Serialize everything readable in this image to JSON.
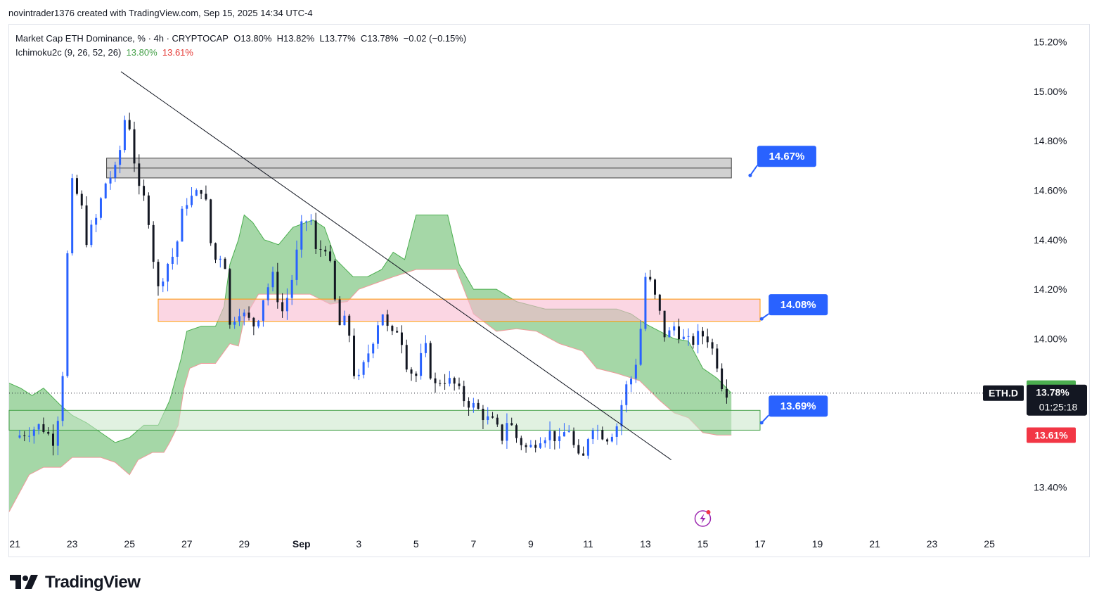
{
  "header": {
    "attribution": "novintrader1376 created with TradingView.com, Sep 15, 2025 14:34 UTC-4"
  },
  "legend": {
    "symbol_line": "Market Cap ETH Dominance, % · 4h · CRYPTOCAP",
    "o_label": "O",
    "o_value": "13.80%",
    "h_label": "H",
    "h_value": "13.82%",
    "l_label": "L",
    "l_value": "13.77%",
    "c_label": "C",
    "c_value": "13.78%",
    "change": "−0.02 (−0.15%)",
    "indicator": "Ichimoku2c (9, 26, 52, 26)",
    "ind_value1": "13.80%",
    "ind_value2": "13.61%"
  },
  "branding": {
    "logo_text": "TradingView",
    "logo_icon": "tradingview-logo-icon"
  },
  "colors": {
    "up": "#2962ff",
    "down": "#131722",
    "cloud": "#4caf50",
    "cloud_edge": "#ef9a9a",
    "resistance_zone": "#f8bbd0",
    "support_zone": "#c8e6c9",
    "gray_zone": "#bdbdbd",
    "callout": "#2962ff",
    "label_green": "#4caf50",
    "label_red": "#f23645",
    "label_dark": "#131722"
  },
  "chart_data": {
    "type": "candlestick",
    "title": "Market Cap ETH Dominance, % · 4h · CRYPTOCAP",
    "ylim": [
      13.23,
      15.27
    ],
    "y_ticks": [
      "15.20%",
      "15.00%",
      "14.80%",
      "14.60%",
      "14.40%",
      "14.20%",
      "14.00%",
      "13.40%"
    ],
    "y_tick_values": [
      15.2,
      15.0,
      14.8,
      14.6,
      14.4,
      14.2,
      14.0,
      13.4
    ],
    "x_ticks": [
      "21",
      "23",
      "25",
      "27",
      "29",
      "Sep",
      "3",
      "5",
      "7",
      "9",
      "11",
      "13",
      "15",
      "17",
      "19",
      "21",
      "23",
      "25"
    ],
    "x_tick_days": [
      0,
      2,
      4,
      6,
      8,
      10,
      12,
      14,
      16,
      18,
      20,
      22,
      24,
      26,
      28,
      30,
      32,
      34
    ],
    "x_start_day": -0.2,
    "x_end_day": 35.2,
    "price_path": [
      [
        0,
        13.6
      ],
      [
        0.9,
        13.65
      ],
      [
        1.4,
        13.58
      ],
      [
        1.7,
        13.9
      ],
      [
        1.8,
        14.18
      ],
      [
        1.9,
        14.65
      ],
      [
        2.3,
        14.55
      ],
      [
        2.5,
        14.4
      ],
      [
        2.9,
        14.5
      ],
      [
        3.1,
        14.62
      ],
      [
        3.5,
        14.68
      ],
      [
        3.7,
        14.78
      ],
      [
        3.9,
        14.94
      ],
      [
        4.1,
        14.78
      ],
      [
        4.3,
        14.6
      ],
      [
        4.6,
        14.55
      ],
      [
        4.8,
        14.35
      ],
      [
        5.0,
        14.2
      ],
      [
        5.3,
        14.3
      ],
      [
        5.6,
        14.35
      ],
      [
        5.9,
        14.55
      ],
      [
        6.3,
        14.58
      ],
      [
        6.6,
        14.62
      ],
      [
        6.8,
        14.4
      ],
      [
        7.0,
        14.32
      ],
      [
        7.3,
        14.35
      ],
      [
        7.5,
        14.05
      ],
      [
        7.8,
        14.12
      ],
      [
        8.1,
        14.08
      ],
      [
        8.4,
        14.05
      ],
      [
        8.7,
        14.18
      ],
      [
        9.0,
        14.25
      ],
      [
        9.3,
        14.1
      ],
      [
        9.6,
        14.2
      ],
      [
        10.0,
        14.45
      ],
      [
        10.3,
        14.5
      ],
      [
        10.5,
        14.35
      ],
      [
        10.9,
        14.38
      ],
      [
        11.1,
        14.2
      ],
      [
        11.3,
        14.05
      ],
      [
        11.6,
        14.08
      ],
      [
        11.9,
        13.8
      ],
      [
        12.2,
        13.9
      ],
      [
        12.5,
        14.0
      ],
      [
        12.8,
        14.12
      ],
      [
        13.1,
        14.0
      ],
      [
        13.4,
        14.05
      ],
      [
        13.7,
        13.88
      ],
      [
        14.0,
        13.85
      ],
      [
        14.3,
        13.98
      ],
      [
        14.6,
        13.8
      ],
      [
        14.9,
        13.84
      ],
      [
        15.3,
        13.82
      ],
      [
        15.7,
        13.75
      ],
      [
        16.1,
        13.72
      ],
      [
        16.4,
        13.68
      ],
      [
        16.7,
        13.66
      ],
      [
        17.0,
        13.6
      ],
      [
        17.2,
        13.68
      ],
      [
        17.5,
        13.6
      ],
      [
        17.9,
        13.55
      ],
      [
        18.3,
        13.6
      ],
      [
        18.7,
        13.62
      ],
      [
        19.0,
        13.58
      ],
      [
        19.3,
        13.65
      ],
      [
        19.6,
        13.52
      ],
      [
        19.8,
        13.5
      ],
      [
        20.1,
        13.66
      ],
      [
        20.4,
        13.62
      ],
      [
        20.7,
        13.6
      ],
      [
        21.0,
        13.65
      ],
      [
        21.3,
        13.8
      ],
      [
        21.6,
        13.86
      ],
      [
        21.8,
        14.0
      ],
      [
        22.0,
        14.25
      ],
      [
        22.2,
        14.22
      ],
      [
        22.5,
        14.1
      ],
      [
        22.7,
        14.0
      ],
      [
        23.0,
        14.05
      ],
      [
        23.3,
        14.0
      ],
      [
        23.6,
        13.98
      ],
      [
        23.9,
        14.02
      ],
      [
        24.2,
        14.0
      ],
      [
        24.5,
        13.9
      ],
      [
        24.7,
        13.8
      ],
      [
        24.9,
        13.78
      ]
    ],
    "ichimoku_cloud": {
      "upper": [
        [
          -0.2,
          13.82
        ],
        [
          0.2,
          13.8
        ],
        [
          0.6,
          13.77
        ],
        [
          1.0,
          13.8
        ],
        [
          1.6,
          13.73
        ],
        [
          2.0,
          13.69
        ],
        [
          2.5,
          13.66
        ],
        [
          3.0,
          13.62
        ],
        [
          3.5,
          13.58
        ],
        [
          4.0,
          13.6
        ],
        [
          4.5,
          13.65
        ],
        [
          5.0,
          13.65
        ],
        [
          5.4,
          13.75
        ],
        [
          5.8,
          13.92
        ],
        [
          6.0,
          14.03
        ],
        [
          6.5,
          14.05
        ],
        [
          7.0,
          14.05
        ],
        [
          7.3,
          14.13
        ],
        [
          7.5,
          14.3
        ],
        [
          7.8,
          14.4
        ],
        [
          8.0,
          14.5
        ],
        [
          8.3,
          14.47
        ],
        [
          8.7,
          14.4
        ],
        [
          9.2,
          14.38
        ],
        [
          9.7,
          14.45
        ],
        [
          10.4,
          14.48
        ],
        [
          10.8,
          14.45
        ],
        [
          11.2,
          14.32
        ],
        [
          11.8,
          14.25
        ],
        [
          12.3,
          14.25
        ],
        [
          12.8,
          14.28
        ],
        [
          13.2,
          14.35
        ],
        [
          13.6,
          14.32
        ],
        [
          14.0,
          14.5
        ],
        [
          15.1,
          14.5
        ],
        [
          15.5,
          14.3
        ],
        [
          16.0,
          14.2
        ],
        [
          16.8,
          14.2
        ],
        [
          17.5,
          14.15
        ],
        [
          18.5,
          14.12
        ],
        [
          20.0,
          14.12
        ],
        [
          21.0,
          14.12
        ],
        [
          21.5,
          14.1
        ],
        [
          22.0,
          14.06
        ],
        [
          23.0,
          14.0
        ],
        [
          23.5,
          13.99
        ],
        [
          24.0,
          13.88
        ],
        [
          24.5,
          13.84
        ],
        [
          25.0,
          13.78
        ]
      ],
      "lower": [
        [
          -0.2,
          13.3
        ],
        [
          0.5,
          13.45
        ],
        [
          1.0,
          13.48
        ],
        [
          1.6,
          13.48
        ],
        [
          2.0,
          13.52
        ],
        [
          2.5,
          13.52
        ],
        [
          3.0,
          13.52
        ],
        [
          3.5,
          13.5
        ],
        [
          4.0,
          13.45
        ],
        [
          4.3,
          13.51
        ],
        [
          4.8,
          13.54
        ],
        [
          5.2,
          13.54
        ],
        [
          5.4,
          13.58
        ],
        [
          5.7,
          13.65
        ],
        [
          5.9,
          13.8
        ],
        [
          6.1,
          13.88
        ],
        [
          6.5,
          13.9
        ],
        [
          7.0,
          13.9
        ],
        [
          7.5,
          13.98
        ],
        [
          7.8,
          13.97
        ],
        [
          8.0,
          14.08
        ],
        [
          8.5,
          14.18
        ],
        [
          9.2,
          14.18
        ],
        [
          9.7,
          14.18
        ],
        [
          10.3,
          14.18
        ],
        [
          11.0,
          14.14
        ],
        [
          11.6,
          14.15
        ],
        [
          12.0,
          14.2
        ],
        [
          13.2,
          14.25
        ],
        [
          14.0,
          14.28
        ],
        [
          15.4,
          14.28
        ],
        [
          16.0,
          14.1
        ],
        [
          16.8,
          14.03
        ],
        [
          17.5,
          14.04
        ],
        [
          18.2,
          14.03
        ],
        [
          19.0,
          13.98
        ],
        [
          19.8,
          13.95
        ],
        [
          20.3,
          13.88
        ],
        [
          21.0,
          13.86
        ],
        [
          21.8,
          13.83
        ],
        [
          22.5,
          13.75
        ],
        [
          23.0,
          13.7
        ],
        [
          23.5,
          13.68
        ],
        [
          24.0,
          13.62
        ],
        [
          24.5,
          13.61
        ],
        [
          25.0,
          13.61
        ]
      ]
    },
    "zones": [
      {
        "name": "gray-resistance-zone",
        "day_start": 3.2,
        "day_end": 25.0,
        "price_low": 14.65,
        "price_high": 14.73
      },
      {
        "name": "pink-resistance-zone",
        "day_start": 5.0,
        "day_end": 26.0,
        "price_low": 14.07,
        "price_high": 14.16
      },
      {
        "name": "green-support-zone",
        "day_start": -0.2,
        "day_end": 26.0,
        "price_low": 13.63,
        "price_high": 13.71
      }
    ],
    "trendline": {
      "start": [
        3.7,
        15.08
      ],
      "end": [
        22.9,
        13.51
      ]
    },
    "last_price": 13.78,
    "callouts": [
      {
        "label": "14.67%",
        "day": 25.9,
        "price": 14.78,
        "anchor_price": 14.66
      },
      {
        "label": "14.08%",
        "day": 26.3,
        "price": 14.18,
        "anchor_price": 14.08
      },
      {
        "label": "13.69%",
        "day": 26.3,
        "price": 13.77,
        "anchor_price": 13.66
      }
    ],
    "price_labels": {
      "cloud_upper": "13.80%",
      "last": "13.78%",
      "countdown": "01:25:18",
      "cloud_lower": "13.61%",
      "symbol": "ETH.D"
    }
  }
}
